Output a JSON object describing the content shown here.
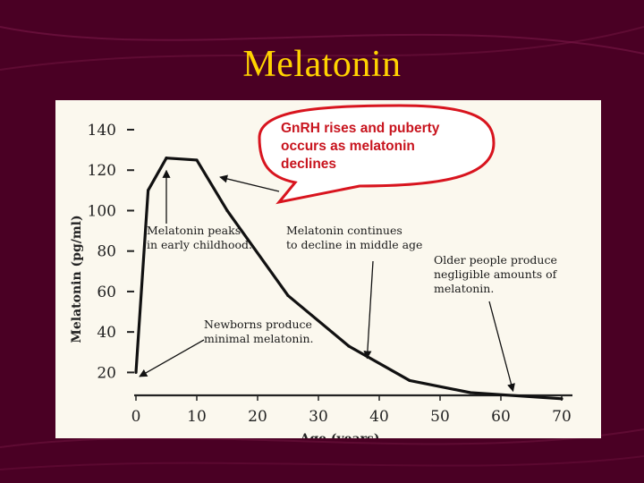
{
  "slide": {
    "title": "Melatonin"
  },
  "colors": {
    "background": "#4a0024",
    "title": "#ffd200",
    "panel": "#fbf8ee",
    "callout": "#d8141e"
  },
  "chart_data": {
    "type": "line",
    "xlabel": "Age (years)",
    "ylabel": "Melatonin (pg/ml)",
    "xlim": [
      0,
      70
    ],
    "ylim": [
      10,
      140
    ],
    "xticks": [
      0,
      10,
      20,
      30,
      40,
      50,
      60,
      70
    ],
    "yticks": [
      20,
      40,
      60,
      80,
      100,
      120,
      140
    ],
    "x": [
      0,
      2,
      5,
      10,
      15,
      25,
      35,
      45,
      55,
      70
    ],
    "y": [
      20,
      110,
      126,
      125,
      100,
      58,
      33,
      16,
      10,
      7
    ],
    "callout": "GnRH rises and puberty occurs as melatonin declines",
    "annotations": [
      {
        "id": "peak",
        "lines": [
          "Melatonin peaks",
          "in early childhood."
        ],
        "point": [
          5,
          126
        ]
      },
      {
        "id": "decline",
        "lines": [
          "Melatonin continues",
          "to decline in middle age"
        ],
        "point": [
          38,
          27
        ]
      },
      {
        "id": "older",
        "lines": [
          "Older people produce",
          "negligible amounts of",
          "melatonin."
        ],
        "point": [
          62,
          9
        ]
      },
      {
        "id": "newborn",
        "lines": [
          "Newborns produce",
          "minimal melatonin."
        ],
        "point": [
          0,
          18
        ]
      }
    ],
    "grid": false,
    "legend": "none"
  }
}
